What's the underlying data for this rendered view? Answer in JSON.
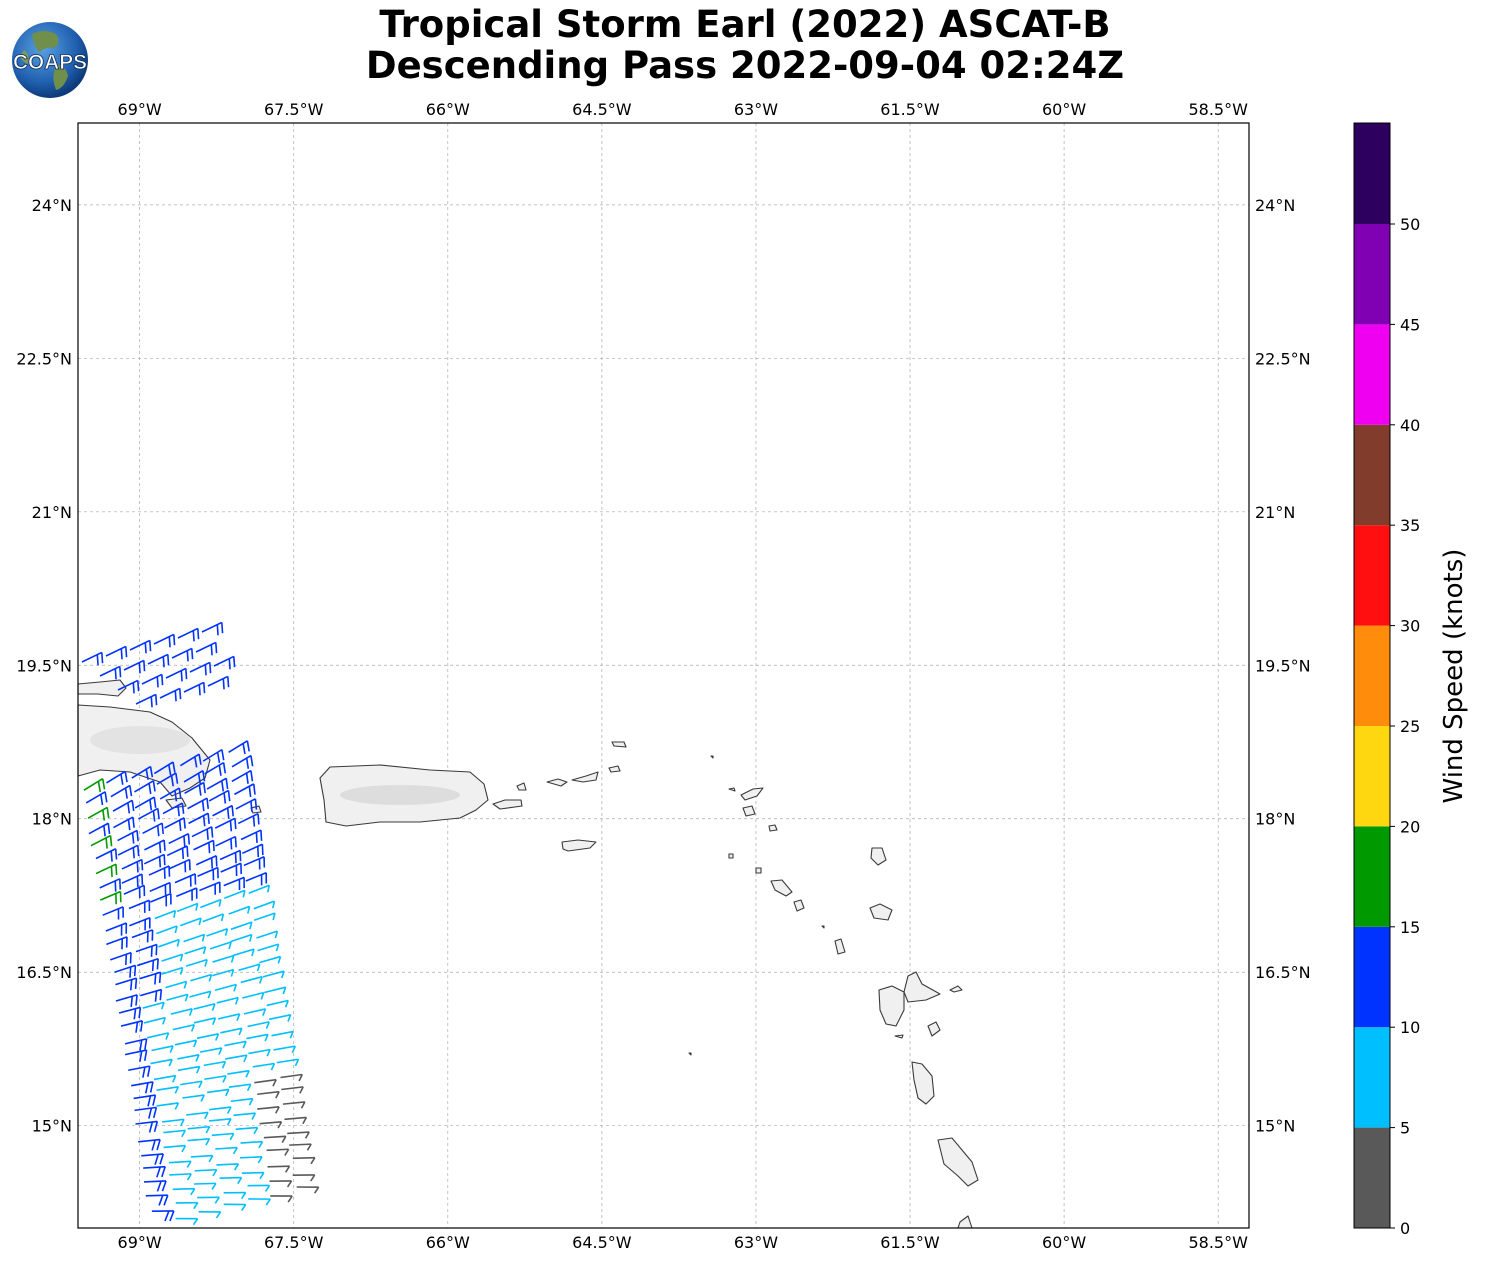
{
  "title": {
    "line1": "Tropical Storm Earl (2022) ASCAT-B",
    "line2": "Descending Pass 2022-09-04 02:24Z"
  },
  "logo": {
    "text": "COAPS",
    "icon": "globe-icon"
  },
  "map": {
    "lon_ticks": [
      "69°W",
      "67.5°W",
      "66°W",
      "64.5°W",
      "63°W",
      "61.5°W",
      "60°W",
      "58.5°W"
    ],
    "lat_ticks": [
      "24°N",
      "22.5°N",
      "21°N",
      "19.5°N",
      "18°N",
      "16.5°N",
      "15°N"
    ],
    "lon_range": [
      -69.6,
      -58.2
    ],
    "lat_range": [
      14.0,
      24.8
    ],
    "grid": true
  },
  "colorbar": {
    "label": "Wind Speed (knots)",
    "ticks": [
      "0",
      "5",
      "10",
      "15",
      "20",
      "25",
      "30",
      "35",
      "40",
      "45",
      "50"
    ],
    "colors": [
      "#595959",
      "#00bfff",
      "#0033ff",
      "#009900",
      "#ffd711",
      "#ff8c0a",
      "#ff0f0f",
      "#813c2b",
      "#f000f0",
      "#8000b4",
      "#2d0060"
    ]
  }
}
